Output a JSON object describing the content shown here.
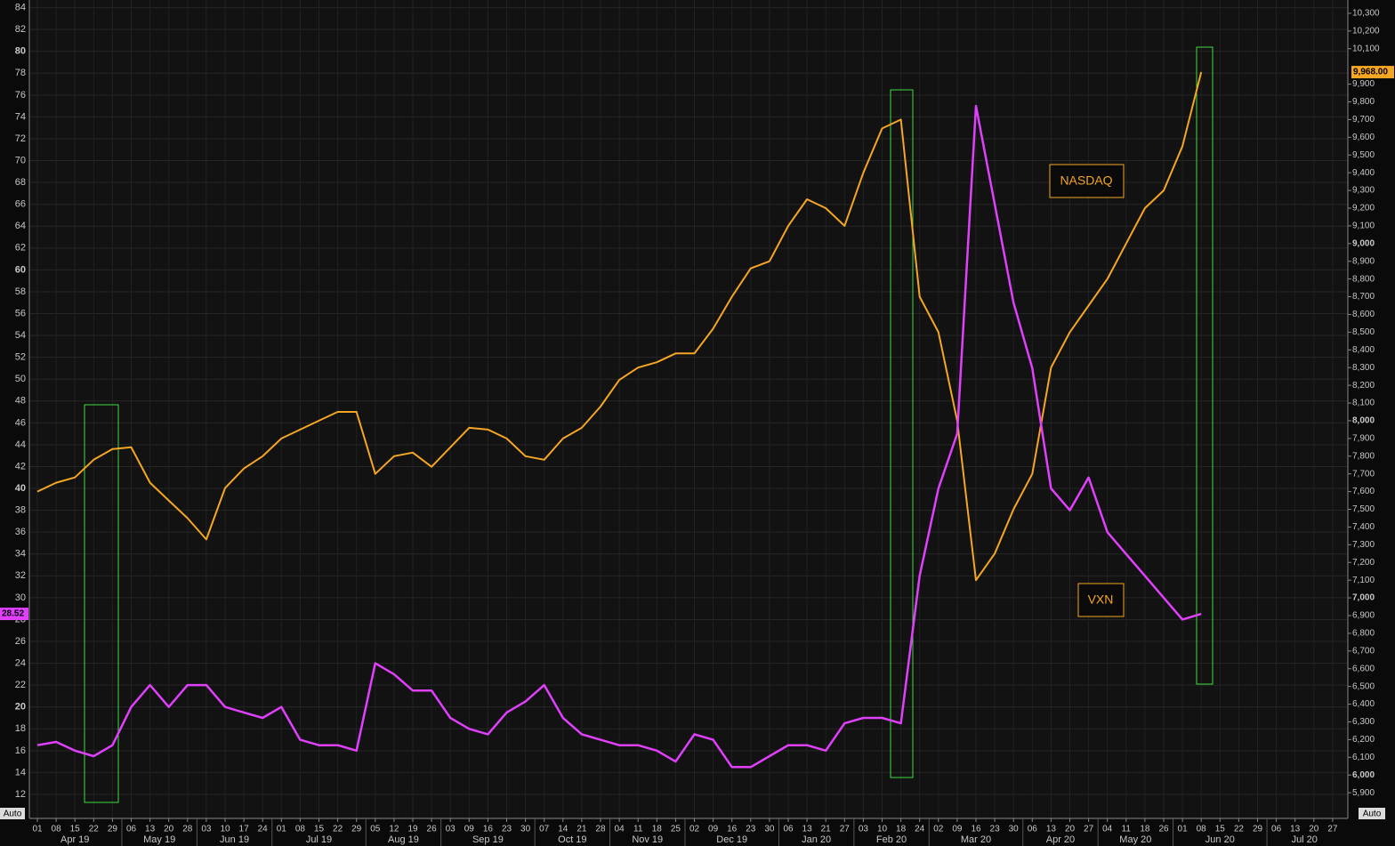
{
  "chart_data": {
    "type": "line",
    "grid": true,
    "categories": [
      "01",
      "08",
      "15",
      "22",
      "29",
      "06",
      "13",
      "20",
      "28",
      "03",
      "10",
      "17",
      "24",
      "01",
      "08",
      "15",
      "22",
      "29",
      "05",
      "12",
      "19",
      "26",
      "03",
      "09",
      "16",
      "23",
      "30",
      "07",
      "14",
      "21",
      "28",
      "04",
      "11",
      "18",
      "25",
      "02",
      "09",
      "16",
      "23",
      "30",
      "06",
      "13",
      "21",
      "27",
      "03",
      "10",
      "18",
      "24",
      "02",
      "09",
      "16",
      "23",
      "30",
      "06",
      "13",
      "20",
      "27",
      "04",
      "11",
      "18",
      "26",
      "01",
      "08",
      "15",
      "22",
      "29",
      "06",
      "13",
      "20",
      "27"
    ],
    "month_labels": [
      "Apr 19",
      "May 19",
      "Jun 19",
      "Jul 19",
      "Aug 19",
      "Sep 19",
      "Oct 19",
      "Nov 19",
      "Dec 19",
      "Jan 20",
      "Feb 20",
      "Mar 20",
      "Apr 20",
      "May 20",
      "Jun 20",
      "Jul 20"
    ],
    "ylim": [
      9.8,
      84.7
    ],
    "yticks": [
      12,
      14,
      16,
      18,
      20,
      22,
      24,
      26,
      28,
      30,
      32,
      34,
      36,
      38,
      40,
      42,
      44,
      46,
      48,
      50,
      52,
      54,
      56,
      58,
      60,
      62,
      64,
      66,
      68,
      70,
      72,
      74,
      76,
      78,
      80,
      82,
      84
    ],
    "y2lim": [
      5755,
      10375
    ],
    "y2ticks": [
      {
        "value": 5900,
        "label": "5,900"
      },
      {
        "value": 6000,
        "label": "6,000"
      },
      {
        "value": 6100,
        "label": "6,100"
      },
      {
        "value": 6200,
        "label": "6,200"
      },
      {
        "value": 6300,
        "label": "6,300"
      },
      {
        "value": 6400,
        "label": "6,400"
      },
      {
        "value": 6500,
        "label": "6,500"
      },
      {
        "value": 6600,
        "label": "6,600"
      },
      {
        "value": 6700,
        "label": "6,700"
      },
      {
        "value": 6800,
        "label": "6,800"
      },
      {
        "value": 6900,
        "label": "6,900"
      },
      {
        "value": 7000,
        "label": "7,000"
      },
      {
        "value": 7100,
        "label": "7,100"
      },
      {
        "value": 7200,
        "label": "7,200"
      },
      {
        "value": 7300,
        "label": "7,300"
      },
      {
        "value": 7400,
        "label": "7,400"
      },
      {
        "value": 7500,
        "label": "7,500"
      },
      {
        "value": 7600,
        "label": "7,600"
      },
      {
        "value": 7700,
        "label": "7,700"
      },
      {
        "value": 7800,
        "label": "7,800"
      },
      {
        "value": 7900,
        "label": "7,900"
      },
      {
        "value": 8000,
        "label": "8,000"
      },
      {
        "value": 8100,
        "label": "8,100"
      },
      {
        "value": 8200,
        "label": "8,200"
      },
      {
        "value": 8300,
        "label": "8,300"
      },
      {
        "value": 8400,
        "label": "8,400"
      },
      {
        "value": 8500,
        "label": "8,500"
      },
      {
        "value": 8600,
        "label": "8,600"
      },
      {
        "value": 8700,
        "label": "8,700"
      },
      {
        "value": 8800,
        "label": "8,800"
      },
      {
        "value": 8900,
        "label": "8,900"
      },
      {
        "value": 9000,
        "label": "9,000"
      },
      {
        "value": 9100,
        "label": "9,100"
      },
      {
        "value": 9200,
        "label": "9,200"
      },
      {
        "value": 9300,
        "label": "9,300"
      },
      {
        "value": 9400,
        "label": "9,400"
      },
      {
        "value": 9500,
        "label": "9,500"
      },
      {
        "value": 9600,
        "label": "9,600"
      },
      {
        "value": 9700,
        "label": "9,700"
      },
      {
        "value": 9800,
        "label": "9,800"
      },
      {
        "value": 9900,
        "label": "9,900"
      },
      {
        "value": 10100,
        "label": "10,100"
      },
      {
        "value": 10200,
        "label": "10,200"
      },
      {
        "value": 10300,
        "label": "10,300"
      }
    ],
    "series": [
      {
        "name": "NASDAQ",
        "color": "#f5a623",
        "axis": "y2",
        "current_label": "9,968.00",
        "values": [
          7600,
          7650,
          7680,
          7780,
          7840,
          7850,
          7650,
          7550,
          7450,
          7330,
          7620,
          7730,
          7800,
          7900,
          7950,
          8000,
          8050,
          8050,
          7700,
          7800,
          7820,
          7740,
          7850,
          7960,
          7950,
          7900,
          7800,
          7780,
          7900,
          7960,
          8080,
          8230,
          8300,
          8330,
          8380,
          8380,
          8520,
          8700,
          8860,
          8900,
          9100,
          9250,
          9200,
          9100,
          9400,
          9650,
          9700,
          8700,
          8500,
          8000,
          7100,
          7250,
          7500,
          7700,
          8300,
          8500,
          8650,
          8800,
          9000,
          9200,
          9300,
          9550,
          9968,
          null,
          null,
          null,
          null,
          null,
          null,
          null
        ]
      },
      {
        "name": "VXN",
        "color": "#e040fb",
        "current_label": "28.52",
        "values": [
          16.5,
          16.8,
          16,
          15.5,
          16.5,
          20,
          22,
          20,
          22,
          22,
          20,
          19.5,
          19,
          20,
          17,
          16.5,
          16.5,
          16,
          24,
          23,
          21.5,
          21.5,
          19,
          18,
          17.5,
          19.5,
          20.5,
          22,
          19,
          17.5,
          17,
          16.5,
          16.5,
          16,
          15,
          17.5,
          17,
          14.5,
          14.5,
          15.5,
          16.5,
          16.5,
          16,
          18.5,
          19,
          19,
          18.5,
          32,
          40,
          45,
          75,
          66,
          57,
          51,
          40,
          38,
          41,
          36,
          34,
          32,
          30,
          28,
          28.52,
          null,
          null,
          null,
          null,
          null,
          null,
          null
        ]
      }
    ],
    "buttons": [
      "Auto",
      "Auto"
    ]
  }
}
